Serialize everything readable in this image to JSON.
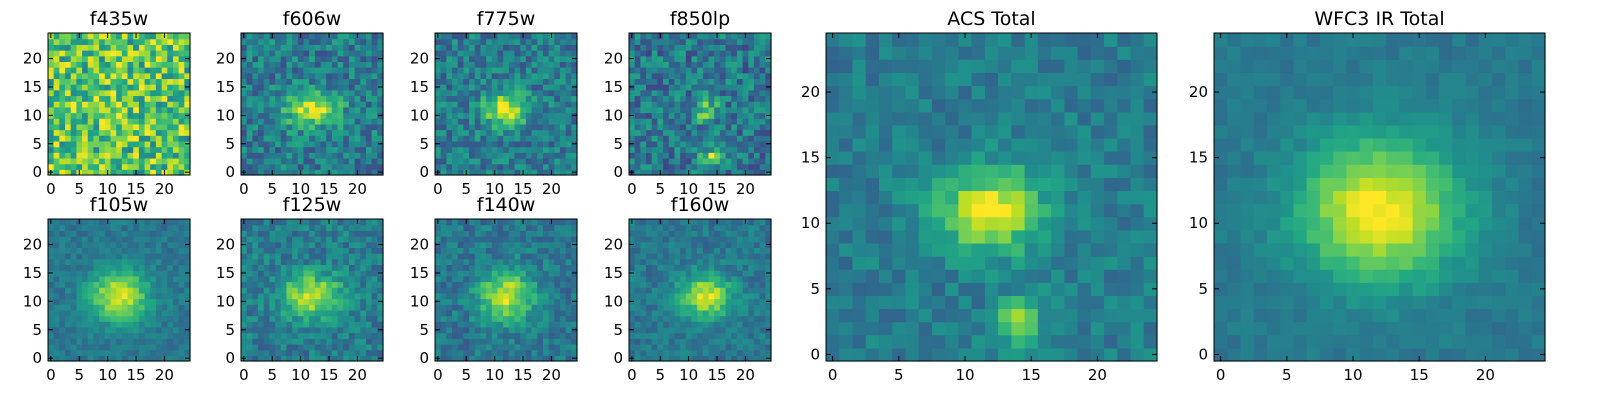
{
  "chart_data": {
    "type": "heatmap",
    "colormap": "viridis",
    "panels": [
      {
        "title": "f435w",
        "grid": 25,
        "xticks": [
          0,
          5,
          10,
          15,
          20
        ],
        "yticks": [
          0,
          5,
          10,
          15,
          20
        ],
        "peak": [
          12,
          11
        ],
        "sigma": [
          3.0,
          3.0
        ],
        "amp": 0.05,
        "bg": 0.72,
        "noise": 0.28,
        "seed": 1
      },
      {
        "title": "f606w",
        "grid": 25,
        "xticks": [
          0,
          5,
          10,
          15,
          20
        ],
        "yticks": [
          0,
          5,
          10,
          15,
          20
        ],
        "peak": [
          12,
          11
        ],
        "sigma": [
          3.2,
          2.0
        ],
        "amp": 0.55,
        "bg": 0.42,
        "noise": 0.18,
        "seed": 2
      },
      {
        "title": "f775w",
        "grid": 25,
        "xticks": [
          0,
          5,
          10,
          15,
          20
        ],
        "yticks": [
          0,
          5,
          10,
          15,
          20
        ],
        "peak": [
          12,
          11
        ],
        "sigma": [
          2.6,
          2.2
        ],
        "amp": 0.55,
        "bg": 0.42,
        "noise": 0.17,
        "seed": 3
      },
      {
        "title": "f850lp",
        "grid": 25,
        "xticks": [
          0,
          5,
          10,
          15,
          20
        ],
        "yticks": [
          0,
          5,
          10,
          15,
          20
        ],
        "peak": [
          13,
          11
        ],
        "sigma": [
          1.6,
          1.4
        ],
        "amp": 0.38,
        "bg": 0.4,
        "noise": 0.2,
        "seed": 4
      },
      {
        "title": "f105w",
        "grid": 25,
        "xticks": [
          0,
          5,
          10,
          15,
          20
        ],
        "yticks": [
          0,
          5,
          10,
          15,
          20
        ],
        "peak": [
          12,
          11
        ],
        "sigma": [
          3.6,
          3.2
        ],
        "amp": 0.55,
        "bg": 0.4,
        "noise": 0.08,
        "seed": 5
      },
      {
        "title": "f125w",
        "grid": 25,
        "xticks": [
          0,
          5,
          10,
          15,
          20
        ],
        "yticks": [
          0,
          5,
          10,
          15,
          20
        ],
        "peak": [
          12,
          11
        ],
        "sigma": [
          3.8,
          2.8
        ],
        "amp": 0.48,
        "bg": 0.42,
        "noise": 0.13,
        "seed": 6
      },
      {
        "title": "f140w",
        "grid": 25,
        "xticks": [
          0,
          5,
          10,
          15,
          20
        ],
        "yticks": [
          0,
          5,
          10,
          15,
          20
        ],
        "peak": [
          12,
          11
        ],
        "sigma": [
          3.4,
          3.2
        ],
        "amp": 0.52,
        "bg": 0.4,
        "noise": 0.12,
        "seed": 7
      },
      {
        "title": "f160w",
        "grid": 25,
        "xticks": [
          0,
          5,
          10,
          15,
          20
        ],
        "yticks": [
          0,
          5,
          10,
          15,
          20
        ],
        "peak": [
          13,
          11
        ],
        "sigma": [
          3.2,
          2.6
        ],
        "amp": 0.55,
        "bg": 0.4,
        "noise": 0.1,
        "seed": 8
      },
      {
        "title": "ACS Total",
        "grid": 25,
        "xticks": [
          0,
          5,
          10,
          15,
          20
        ],
        "yticks": [
          0,
          5,
          10,
          15,
          20
        ],
        "peak": [
          12,
          11
        ],
        "sigma": [
          2.8,
          2.2
        ],
        "amp": 0.55,
        "bg": 0.42,
        "noise": 0.1,
        "seed": 9
      },
      {
        "title": "WFC3 IR Total",
        "grid": 25,
        "xticks": [
          0,
          5,
          10,
          15,
          20
        ],
        "yticks": [
          0,
          5,
          10,
          15,
          20
        ],
        "peak": [
          12,
          11
        ],
        "sigma": [
          4.2,
          3.8
        ],
        "amp": 0.6,
        "bg": 0.4,
        "noise": 0.05,
        "seed": 10
      }
    ]
  }
}
